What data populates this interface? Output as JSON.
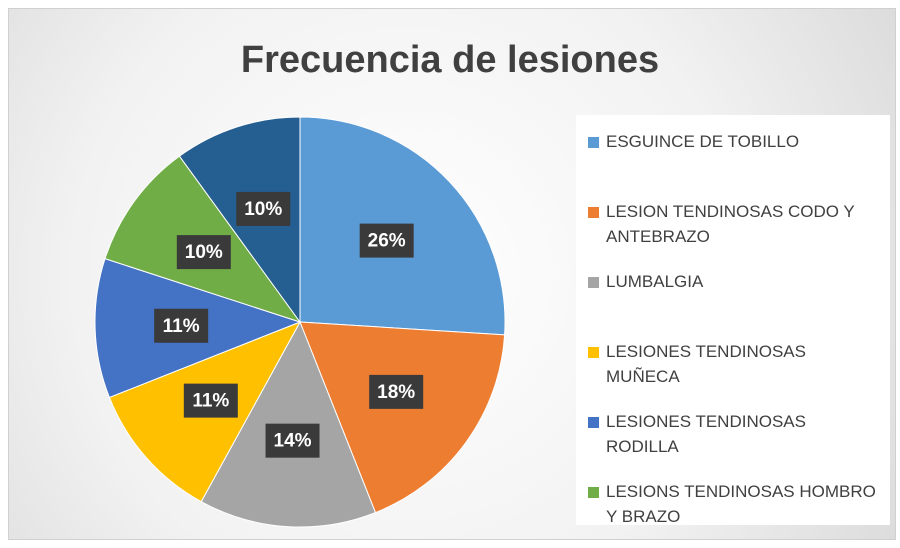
{
  "chart_data": {
    "type": "pie",
    "title": "Frecuencia de lesiones",
    "categories": [
      "ESGUINCE DE TOBILLO",
      "LESION TENDINOSAS CODO Y ANTEBRAZO",
      "LUMBALGIA",
      "LESIONES TENDINOSAS MUÑECA",
      "LESIONES TENDINOSAS RODILLA",
      "LESIONS TENDINOSAS HOMBRO Y BRAZO",
      null
    ],
    "values": [
      26,
      18,
      14,
      11,
      11,
      10,
      10
    ],
    "value_labels": [
      "26%",
      "18%",
      "14%",
      "11%",
      "11%",
      "10%",
      "10%"
    ],
    "colors": [
      "#5b9bd5",
      "#ed7d31",
      "#a5a5a5",
      "#ffc000",
      "#4472c4",
      "#70ad47",
      "#255e91"
    ],
    "legend": "right"
  }
}
